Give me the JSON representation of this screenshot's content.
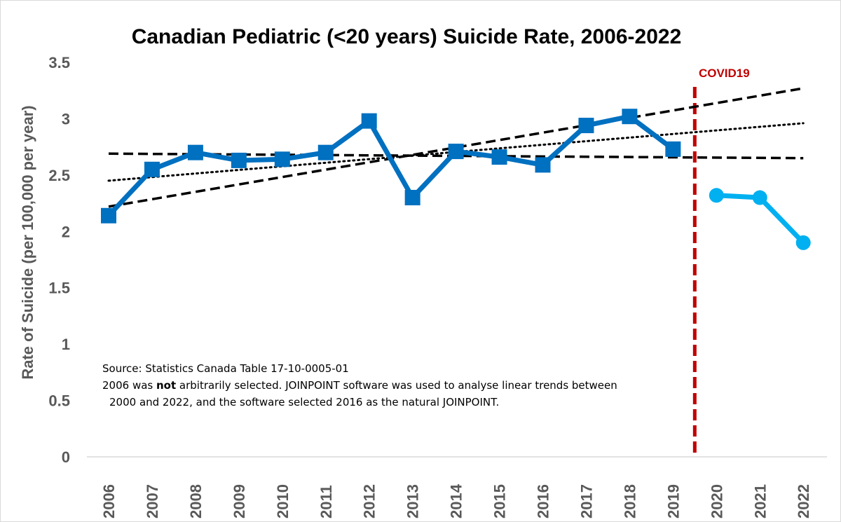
{
  "chart_data": {
    "type": "line",
    "title": "Canadian Pediatric (<20 years) Suicide Rate, 2006-2022",
    "ylabel": "Rate of Suicide (per 100,000 per year)",
    "xlabel": "",
    "categories": [
      "2006",
      "2007",
      "2008",
      "2009",
      "2010",
      "2011",
      "2012",
      "2013",
      "2014",
      "2015",
      "2016",
      "2017",
      "2018",
      "2019",
      "2020",
      "2021",
      "2022"
    ],
    "y_ticks": [
      "0",
      "0.5",
      "1",
      "1.5",
      "2",
      "2.5",
      "3",
      "3.5"
    ],
    "ylim": [
      0,
      3.5
    ],
    "grid": false,
    "series": [
      {
        "values": [
          2.14,
          2.55,
          2.7,
          2.63,
          2.64,
          2.7,
          2.98,
          2.3,
          2.71,
          2.66,
          2.59,
          2.94,
          3.02,
          2.73,
          null,
          null,
          null
        ],
        "color": "#0070c0",
        "marker": "square"
      },
      {
        "values": [
          null,
          null,
          null,
          null,
          null,
          null,
          null,
          null,
          null,
          null,
          null,
          null,
          null,
          null,
          2.32,
          2.3,
          1.9
        ],
        "color": "#00b0f0",
        "marker": "circle"
      }
    ],
    "trend_lines": [
      {
        "style": "dotted",
        "color": "#000000",
        "x": [
          "2006",
          "2022"
        ],
        "y": [
          2.45,
          2.96
        ]
      },
      {
        "style": "dashed",
        "color": "#000000",
        "x": [
          "2006",
          "2022"
        ],
        "y": [
          2.69,
          2.65
        ]
      },
      {
        "style": "dashed",
        "color": "#000000",
        "x": [
          "2006",
          "2022"
        ],
        "y": [
          2.22,
          3.27
        ]
      }
    ],
    "annotations": {
      "covid_label": "COVID19",
      "covid_color": "#c00000",
      "source": "Source: Statistics Canada Table 17-10-0005-01",
      "note_before_bold": "2006 was ",
      "note_bold": "not",
      "note_after_bold": " arbitrarily selected. JOINPOINT software was used to analyse linear trends between",
      "note_line2": "2000 and 2022, and the software selected 2016 as the natural JOINPOINT."
    }
  }
}
